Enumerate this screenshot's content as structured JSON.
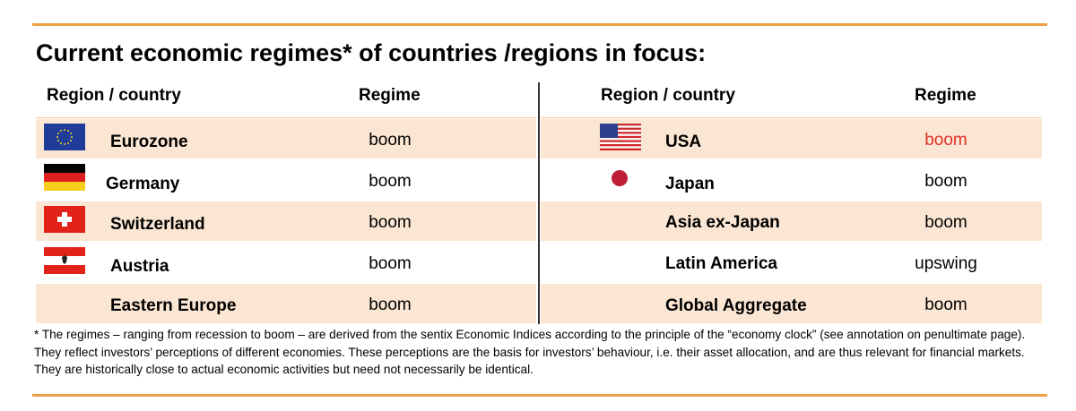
{
  "clipped_text": "...vy ... ny ... g ... g ... ... ... gy ...",
  "title": "Current economic regimes* of countries /regions in focus:",
  "headers": {
    "region": "Region / country",
    "regime": "Regime"
  },
  "left_rows": [
    {
      "name": "Eurozone",
      "regime": "boom",
      "flag": "eu-flag-icon"
    },
    {
      "name": "Germany",
      "regime": "boom",
      "flag": "germany-flag-icon"
    },
    {
      "name": "Switzerland",
      "regime": "boom",
      "flag": "switzerland-flag-icon"
    },
    {
      "name": "Austria",
      "regime": "boom",
      "flag": "austria-flag-icon"
    },
    {
      "name": "Eastern Europe",
      "regime": "boom"
    }
  ],
  "right_rows": [
    {
      "name": "USA",
      "regime": "boom",
      "flag": "usa-flag-icon",
      "regime_color": "#e0302a"
    },
    {
      "name": "Japan",
      "regime": "boom",
      "flag": "japan-flag-icon"
    },
    {
      "name": "Asia ex-Japan",
      "regime": "boom"
    },
    {
      "name": "Latin America",
      "regime": "upswing"
    },
    {
      "name": "Global Aggregate",
      "regime": "boom"
    }
  ],
  "footnote": "* The regimes – ranging from recession to boom – are derived from the sentix Economic Indices according to the principle of the “economy clock” (see annotation on penultimate page). They reflect investors’ perceptions of different economies. These perceptions are the basis for investors’ behaviour, i.e. their asset allocation, and are thus relevant for financial markets. They are historically close to actual economic activities but need not necessarily be identical.",
  "colors": {
    "accent_rule": "#f0a046",
    "band": "#fbe6d3"
  }
}
